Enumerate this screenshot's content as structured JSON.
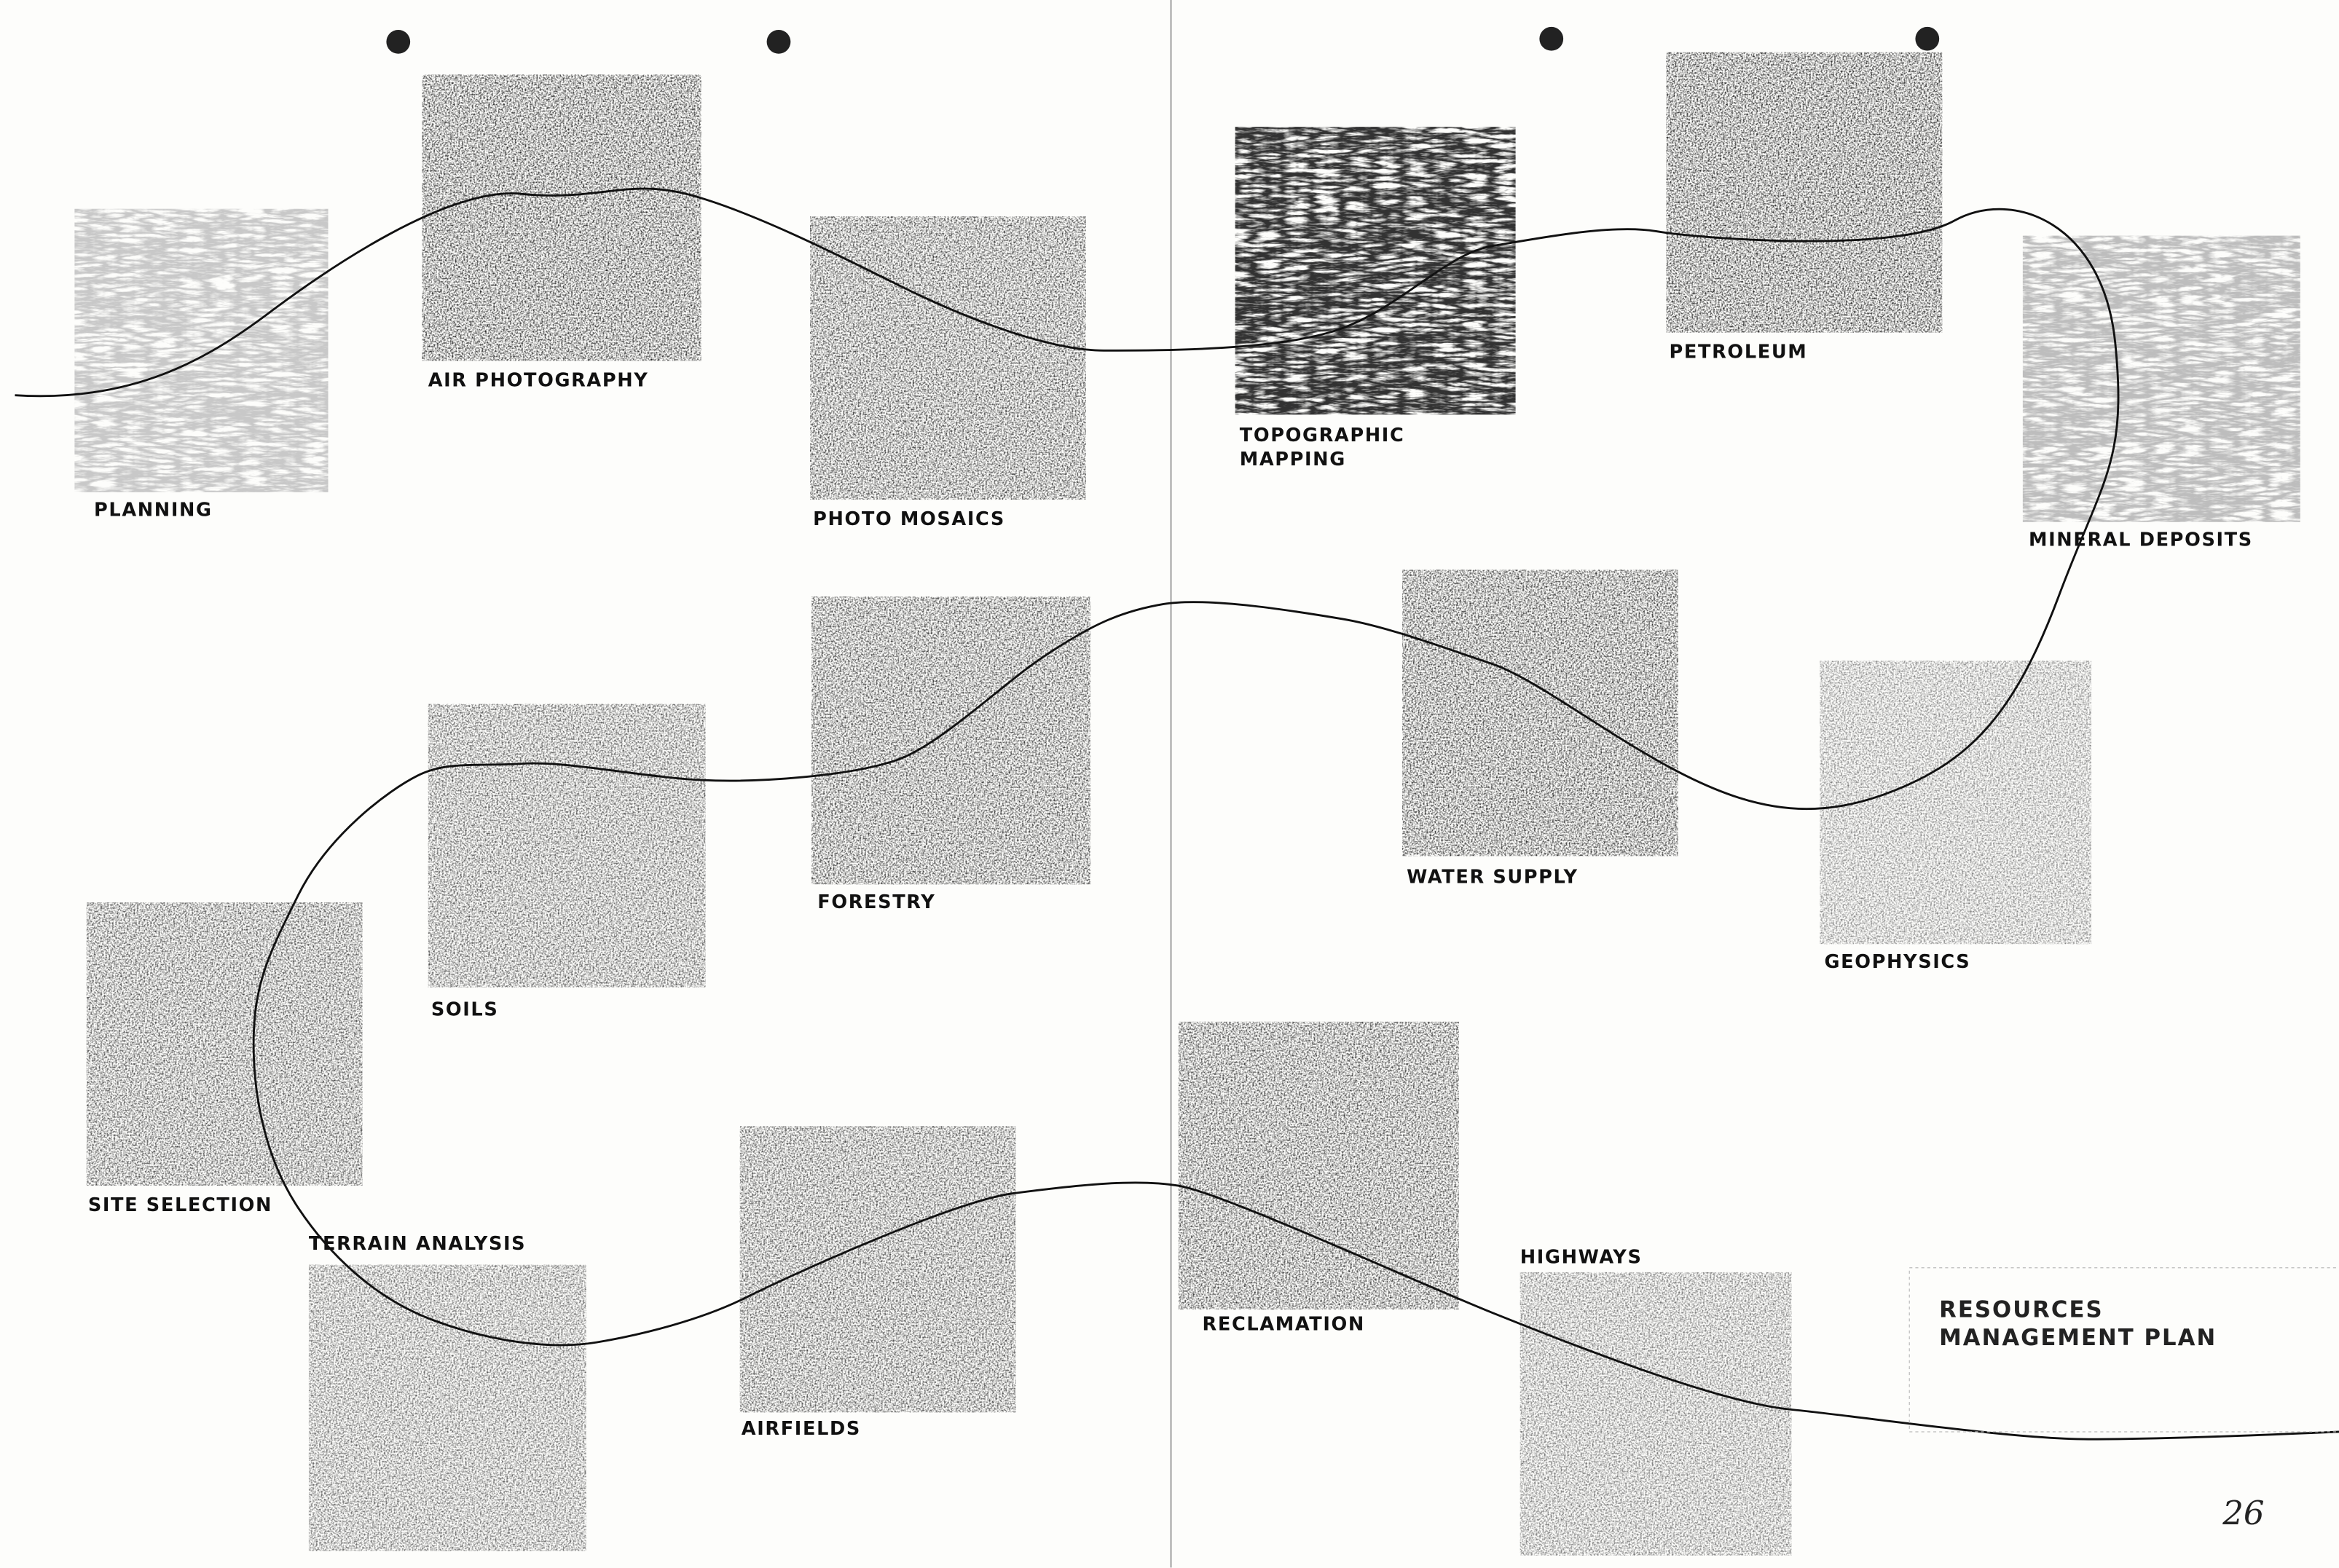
{
  "panels": [
    {
      "lines": [
        "PLANNING"
      ]
    },
    {
      "lines": [
        "AIR PHOTOGRAPHY"
      ]
    },
    {
      "lines": [
        "PHOTO MOSAICS"
      ]
    },
    {
      "lines": [
        "TOPOGRAPHIC",
        "MAPPING"
      ]
    },
    {
      "lines": [
        "PETROLEUM"
      ]
    },
    {
      "lines": [
        "MINERAL DEPOSITS"
      ]
    },
    {
      "lines": [
        "GEOPHYSICS"
      ]
    },
    {
      "lines": [
        "WATER SUPPLY"
      ]
    },
    {
      "lines": [
        "FORESTRY"
      ]
    },
    {
      "lines": [
        "SOILS"
      ]
    },
    {
      "lines": [
        "SITE SELECTION"
      ]
    },
    {
      "lines": [
        "TERRAIN ANALYSIS"
      ]
    },
    {
      "lines": [
        "AIRFIELDS"
      ]
    },
    {
      "lines": [
        "RECLAMATION"
      ]
    },
    {
      "lines": [
        "HIGHWAYS"
      ]
    }
  ],
  "title": [
    "RESOURCES",
    "MANAGEMENT PLAN"
  ],
  "page_number": "26"
}
